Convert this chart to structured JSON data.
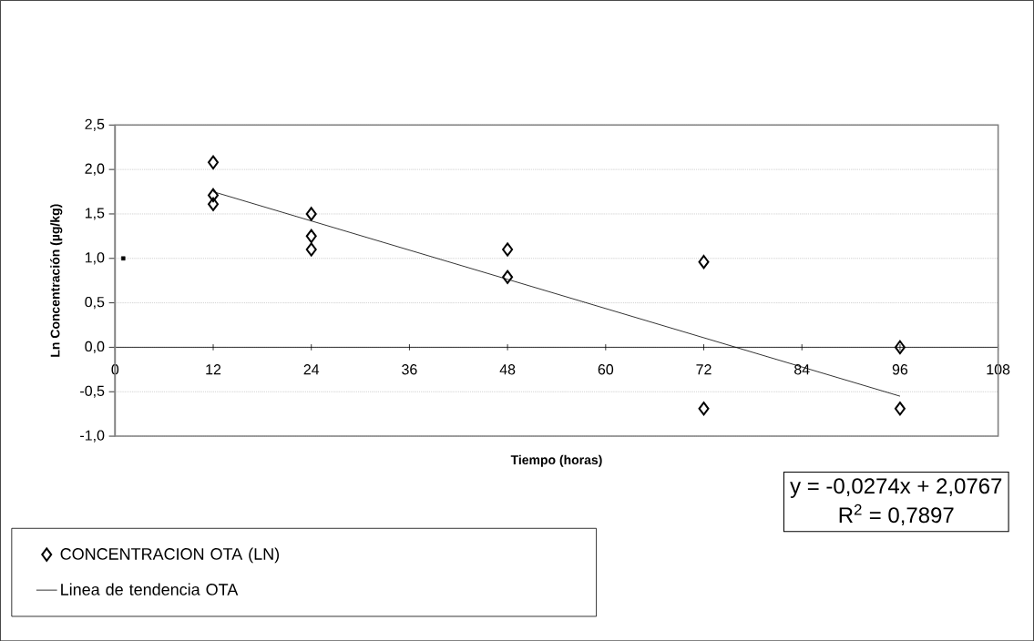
{
  "chart_data": {
    "type": "scatter",
    "xlabel": "Tiempo (horas)",
    "ylabel": "Ln Concentración (µg/kg)",
    "xlim": [
      0,
      108
    ],
    "xticks": [
      0,
      12,
      24,
      36,
      48,
      60,
      72,
      84,
      96,
      108
    ],
    "ylim": [
      -1,
      2.5
    ],
    "yticks": [
      {
        "value": -1,
        "label": "-1,0"
      },
      {
        "value": -0.5,
        "label": "-0,5"
      },
      {
        "value": 0,
        "label": "0,0"
      },
      {
        "value": 0.5,
        "label": "0,5"
      },
      {
        "value": 1,
        "label": "1,0"
      },
      {
        "value": 1.5,
        "label": "1,5"
      },
      {
        "value": 2,
        "label": "2,0"
      },
      {
        "value": 2.5,
        "label": "2,5"
      }
    ],
    "grid": "y",
    "legend": "bottom left",
    "series": [
      {
        "name": "CONCENTRACION OTA (LN)",
        "marker": "diamond",
        "color": "#000000",
        "x": [
          12,
          12,
          12,
          24,
          24,
          24,
          48,
          48,
          72,
          72,
          96,
          96
        ],
        "values": [
          2.08,
          1.71,
          1.61,
          1.5,
          1.25,
          1.1,
          1.1,
          0.79,
          0.96,
          -0.69,
          0.0,
          -0.69
        ]
      },
      {
        "name": "Linea de tendencia OTA",
        "type": "line",
        "marker": "none",
        "line_style": "solid",
        "color": "#000000",
        "x": [
          12,
          96
        ],
        "values": [
          1.75,
          -0.55
        ]
      },
      {
        "marker": "square",
        "color": "#000000",
        "x": [
          1
        ],
        "values": [
          1.0
        ]
      }
    ],
    "annotations": [
      "y = -0,0274x + 2,0767",
      "R$^{2}$ = 0,7897"
    ]
  }
}
